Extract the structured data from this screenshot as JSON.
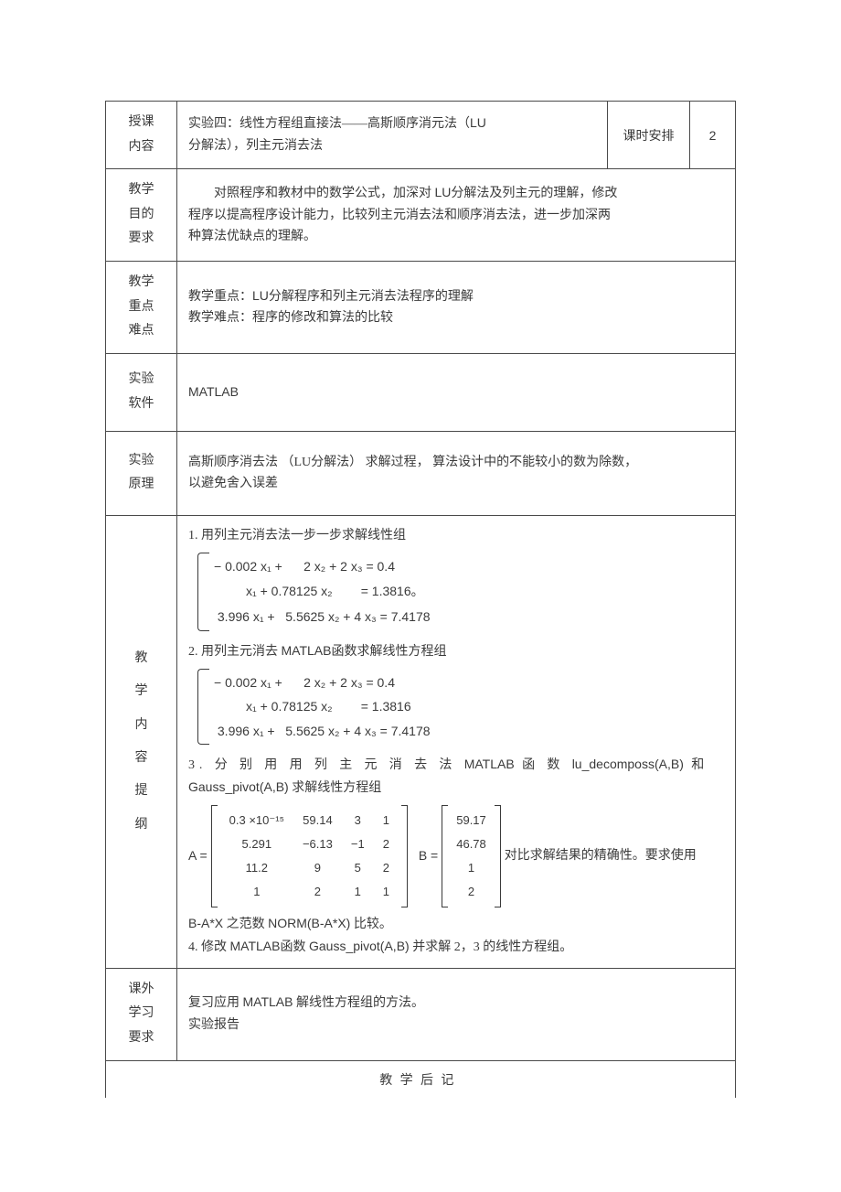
{
  "colors": {
    "text": "#3a3a3a",
    "border": "#4a4a4a",
    "bg": "#ffffff"
  },
  "rows": {
    "r1": {
      "label": "授课\n内容",
      "text_pre": "实验四：线性方程组直接法——高斯顺序消元法（",
      "lu": "LU",
      "text_post": "分解法），列主元消去法",
      "hours_label": "课时安排",
      "hours_value": "2"
    },
    "r2": {
      "label": "教学\n目的\n要求",
      "line1_pre": "对照程序和教材中的数学公式，加深对",
      "line1_lu": "LU",
      "line1_post": "分解法及列主元的理解，修改",
      "line2": "程序以提高程序设计能力，比较列主元消去法和顺序消去法，进一步加深两",
      "line3": "种算法优缺点的理解。"
    },
    "r3": {
      "label": "教学\n重点\n难点",
      "line1_pre": "教学重点：",
      "line1_lu": "LU",
      "line1_post": "分解程序和列主元消去法程序的理解",
      "line2": "教学难点：程序的修改和算法的比较"
    },
    "r4": {
      "label": "实验\n软件",
      "text": "MATLAB"
    },
    "r5": {
      "label": "实验\n原理",
      "pre": "高斯顺序消去法",
      "paren": "（LU分解法）",
      "mid": "求解过程，",
      "post": "算法设计中的不能较小的数为除数，",
      "line2": "以避免舍入误差"
    },
    "r6": {
      "label": "教\n学\n内\n容\n提\n纲",
      "p1": "1. 用列主元消去法一步一步求解线性组",
      "eq1": {
        "l1": "− 0.002 x₁ +      2 x₂ + 2 x₃ = 0.4",
        "l2": "         x₁ + 0.78125 x₂        = 1.3816",
        "l3": " 3.996 x₁ +   5.5625 x₂ + 4 x₃ = 7.4178",
        "tail": "。"
      },
      "p2_pre": "2. 用列主元消去",
      "p2_code": "MATLAB",
      "p2_post": "函数求解线性方程组",
      "eq2": {
        "l1": "− 0.002 x₁ +      2 x₂ + 2 x₃ = 0.4",
        "l2": "         x₁ + 0.78125 x₂        = 1.3816",
        "l3": " 3.996 x₁ +   5.5625 x₂ + 4 x₃ = 7.4178"
      },
      "p3_a": "3.  分 别 用 用 列 主 元 消 去 法 ",
      "p3_b": "MATLAB",
      "p3_c": " 函 数 ",
      "p3_d": "lu_decomposs(A,B)",
      "p3_e": "  和",
      "p3_line2a": "Gauss_pivot(A,B)",
      "p3_line2b": " 求解线性方程组",
      "matA": {
        "prefix": "A =",
        "rows": [
          [
            "0.3 ×10⁻¹⁵",
            "59.14",
            "3",
            "1"
          ],
          [
            "5.291",
            "−6.13",
            "−1",
            "2"
          ],
          [
            "11.2",
            "9",
            "5",
            "2"
          ],
          [
            "1",
            "2",
            "1",
            "1"
          ]
        ]
      },
      "matB": {
        "prefix": "B =",
        "rows": [
          [
            "59.17"
          ],
          [
            "46.78"
          ],
          [
            "1"
          ],
          [
            "2"
          ]
        ]
      },
      "mat_tail": "对比求解结果的精确性。要求使用",
      "p3_line_end_a": "B-A*X",
      "p3_line_end_b": " 之范数 ",
      "p3_line_end_c": "NORM(B-A*X)",
      "p3_line_end_d": " 比较。",
      "p4_a": "4. 修改 ",
      "p4_b": "MATLAB",
      "p4_c": "函数 ",
      "p4_d": "Gauss_pivot(A,B)",
      "p4_e": " 并求解 2，3 的线性方程组。"
    },
    "r7": {
      "label": "课外\n学习\n要求",
      "line1_a": "复习应用 ",
      "line1_b": "MATLAB",
      "line1_c": " 解线性方程组的方法。",
      "line2": "实验报告"
    },
    "footer": "教学后记"
  }
}
